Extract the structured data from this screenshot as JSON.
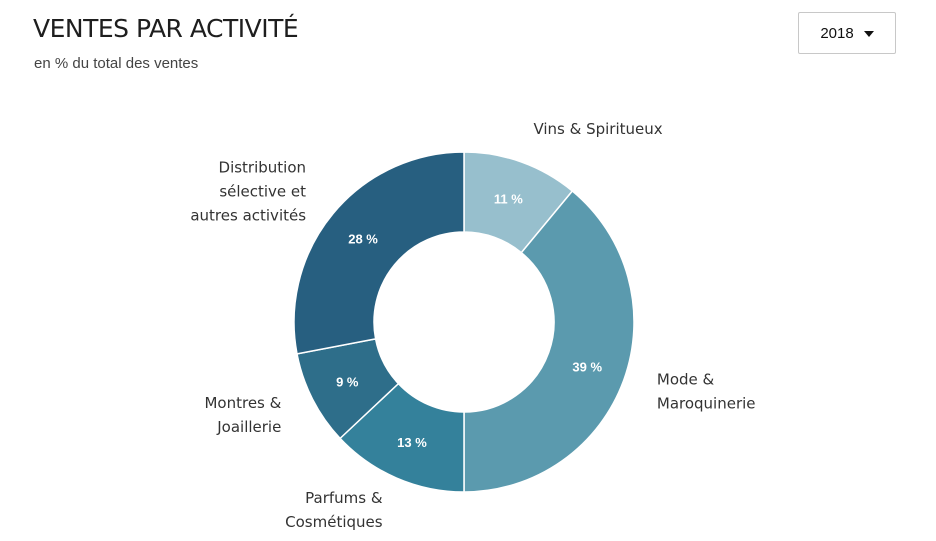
{
  "header": {
    "title": "VENTES PAR ACTIVITÉ",
    "subtitle": "en % du total des ventes"
  },
  "year_select": {
    "selected": "2018"
  },
  "chart_data": {
    "type": "pie",
    "donut": true,
    "unit": "%",
    "slices": [
      {
        "label_lines": [
          "Vins & Spiritueux"
        ],
        "value": 11,
        "value_label": "11 %",
        "color": "#97bfcd"
      },
      {
        "label_lines": [
          "Mode &",
          "Maroquinerie"
        ],
        "value": 39,
        "value_label": "39 %",
        "color": "#5b9aae"
      },
      {
        "label_lines": [
          "Parfums &",
          "Cosmétiques"
        ],
        "value": 13,
        "value_label": "13 %",
        "color": "#34819b"
      },
      {
        "label_lines": [
          "Montres &",
          "Joaillerie"
        ],
        "value": 9,
        "value_label": "9 %",
        "color": "#2e6e8a"
      },
      {
        "label_lines": [
          "Distribution",
          "sélective et",
          "autres activités"
        ],
        "value": 28,
        "value_label": "28 %",
        "color": "#275f80"
      }
    ]
  }
}
